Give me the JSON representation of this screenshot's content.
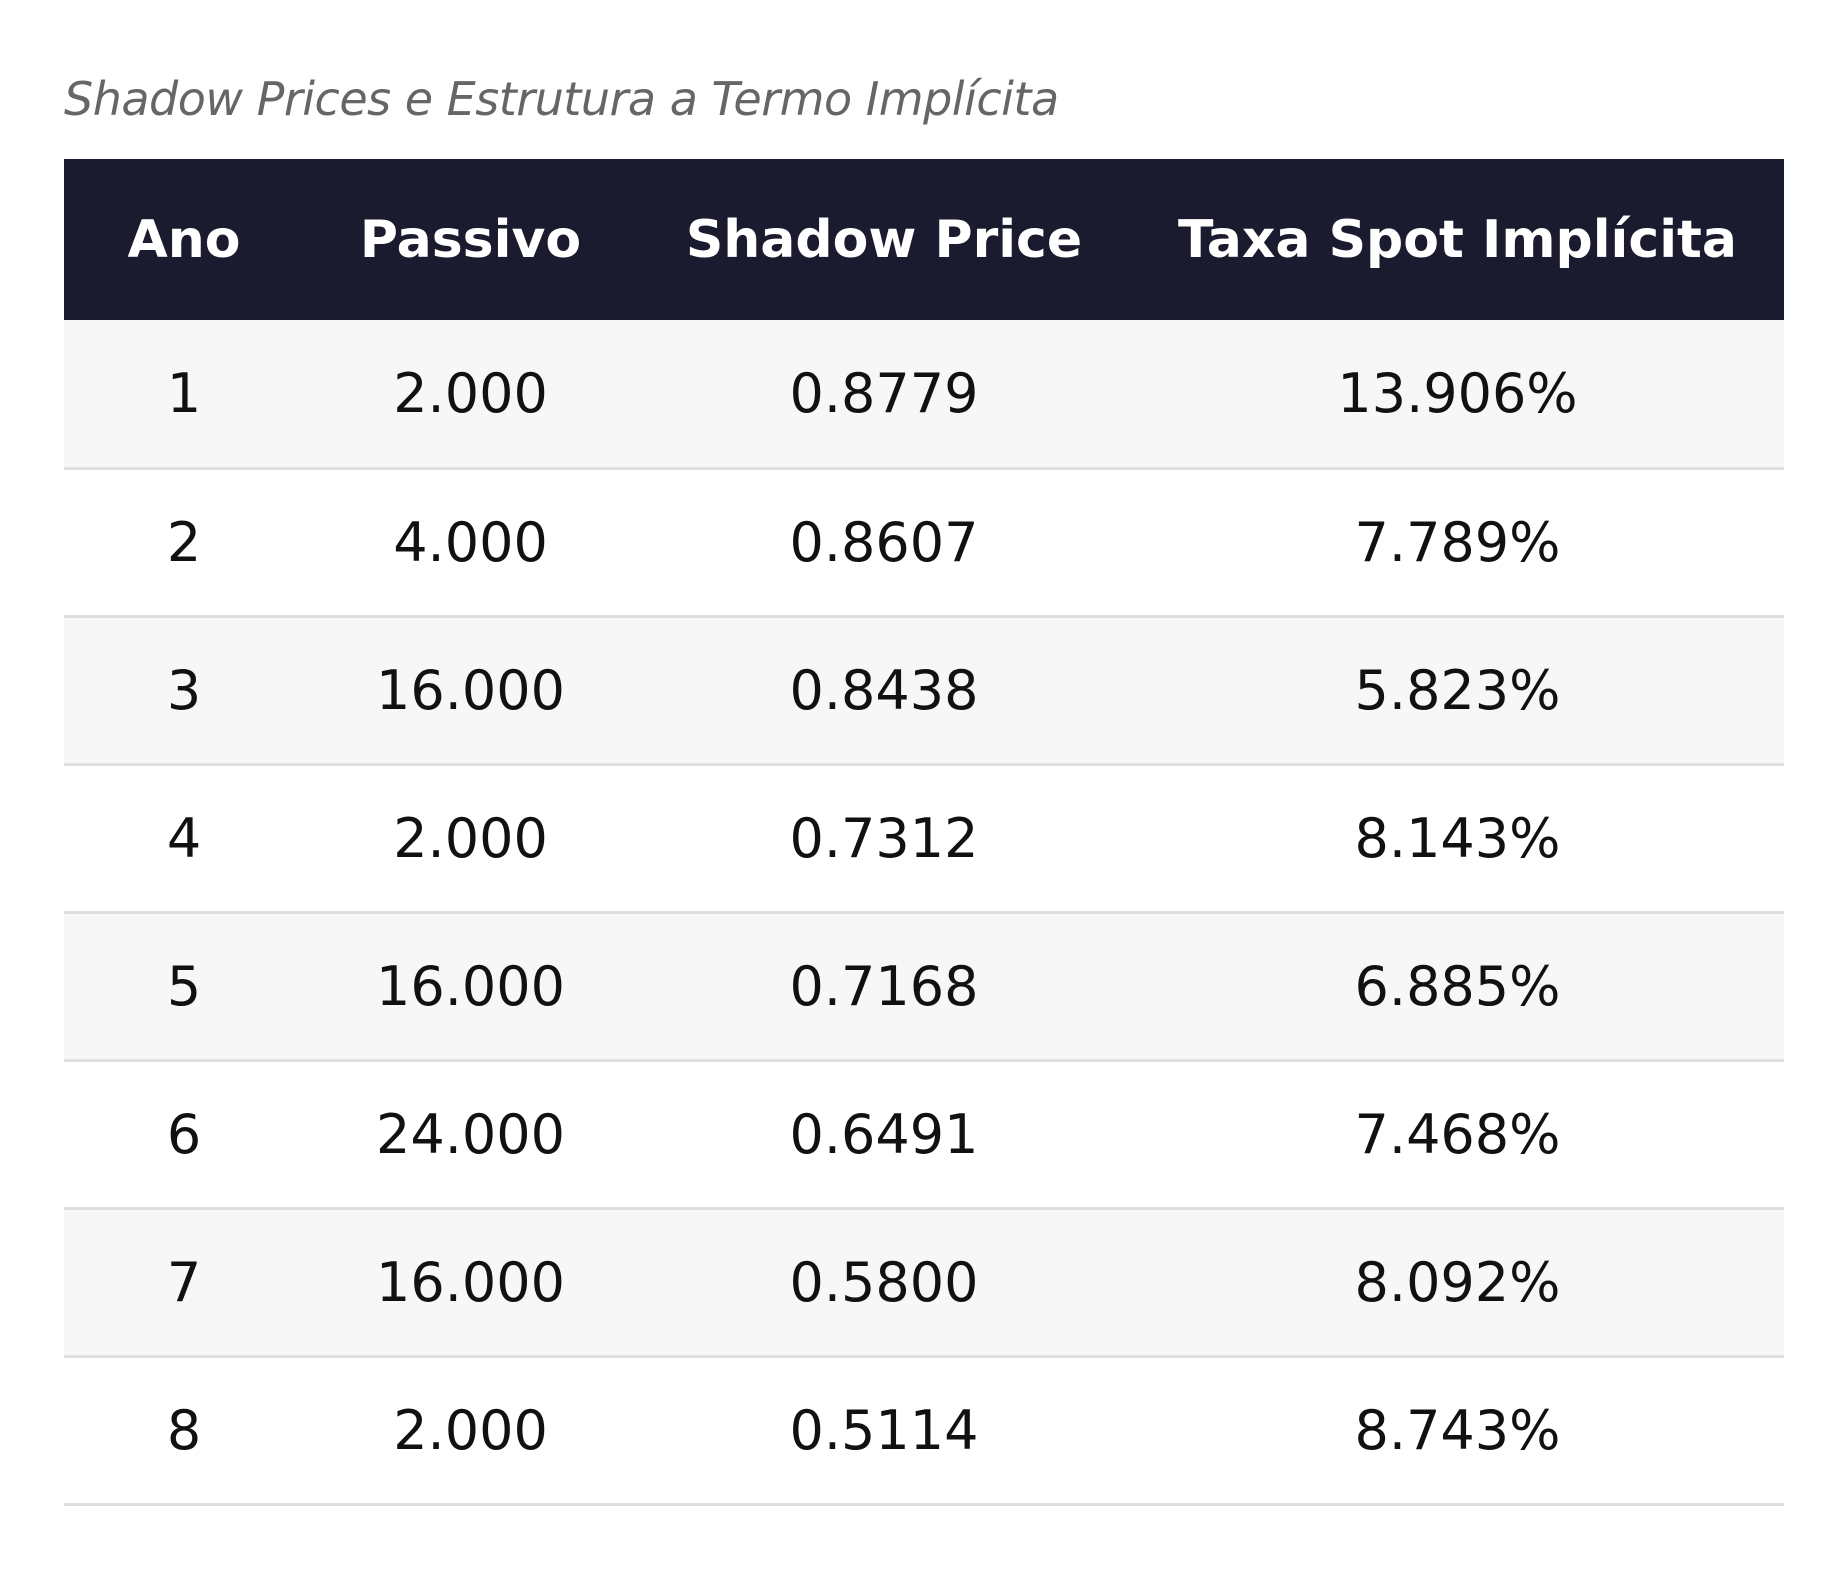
{
  "caption": "Shadow Prices e Estrutura a Termo Implícita",
  "table": {
    "headers": [
      "Ano",
      "Passivo",
      "Shadow Price",
      "Taxa Spot Implícita"
    ],
    "rows": [
      [
        "1",
        "2.000",
        "0.8779",
        "13.906%"
      ],
      [
        "2",
        "4.000",
        "0.8607",
        "7.789%"
      ],
      [
        "3",
        "16.000",
        "0.8438",
        "5.823%"
      ],
      [
        "4",
        "2.000",
        "0.7312",
        "8.143%"
      ],
      [
        "5",
        "16.000",
        "0.7168",
        "6.885%"
      ],
      [
        "6",
        "24.000",
        "0.6491",
        "7.468%"
      ],
      [
        "7",
        "16.000",
        "0.5800",
        "8.092%"
      ],
      [
        "8",
        "2.000",
        "0.5114",
        "8.743%"
      ]
    ]
  },
  "colors": {
    "header_background": "#1b1b2f",
    "header_text": "#ffffff",
    "row_stripe": "#f7f7f7",
    "row_divider": "#dedede",
    "caption_text": "#666666"
  }
}
